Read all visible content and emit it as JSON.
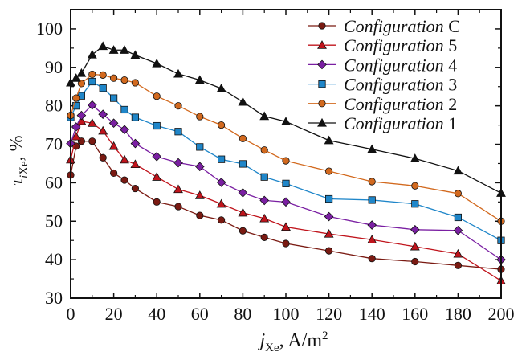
{
  "chart_data": {
    "type": "line",
    "xlabel": {
      "var": "j",
      "sub": "Xe",
      "unit": ", A/m",
      "sup": "2"
    },
    "ylabel": {
      "var": "τ",
      "sub_i": "i",
      "sub": "Xe",
      "unit": ", %"
    },
    "xlim": [
      0,
      200
    ],
    "ylim": [
      30,
      105
    ],
    "x_ticks": [
      0,
      20,
      40,
      60,
      80,
      100,
      120,
      140,
      160,
      180,
      200
    ],
    "y_ticks": [
      30,
      40,
      50,
      60,
      70,
      80,
      90,
      100
    ],
    "legend_position": "top-right",
    "series": [
      {
        "name_italic": "Configuration",
        "name_suffix": " C",
        "marker": "circle",
        "color": "#7a1a12",
        "x": [
          0,
          2.5,
          5,
          10,
          15,
          20,
          25,
          30,
          40,
          50,
          60,
          70,
          80,
          90,
          100,
          120,
          140,
          160,
          180,
          200
        ],
        "y": [
          62,
          69.5,
          70.8,
          70.8,
          66.5,
          62.5,
          60.7,
          58.5,
          55,
          53.8,
          51.5,
          50.3,
          47.5,
          45.8,
          44.2,
          42.3,
          40.3,
          39.5,
          38.5,
          37.5
        ]
      },
      {
        "name_italic": "Configuration",
        "name_suffix": " 5",
        "marker": "triangle",
        "color": "#c0141c",
        "x": [
          0,
          2.5,
          5,
          10,
          15,
          20,
          25,
          30,
          40,
          50,
          60,
          70,
          80,
          90,
          100,
          120,
          140,
          160,
          180,
          200
        ],
        "y": [
          66,
          72,
          76,
          75.5,
          73.5,
          69.5,
          66,
          64.8,
          61.5,
          58.3,
          56.7,
          54.5,
          52.2,
          50.7,
          48.5,
          46.7,
          45.2,
          43.4,
          41.5,
          34.5
        ]
      },
      {
        "name_italic": "Configuration",
        "name_suffix": " 4",
        "marker": "diamond",
        "color": "#7a1fa2",
        "x": [
          0,
          2.5,
          5,
          10,
          15,
          20,
          25,
          30,
          40,
          50,
          60,
          70,
          80,
          90,
          100,
          120,
          140,
          160,
          180,
          200
        ],
        "y": [
          70.2,
          74.5,
          77.5,
          80.2,
          77.8,
          75.5,
          73.8,
          70.2,
          66.8,
          65.2,
          64.2,
          60.1,
          57.4,
          55.4,
          55,
          51.2,
          49,
          47.8,
          47.6,
          40
        ]
      },
      {
        "name_italic": "Configuration",
        "name_suffix": " 3",
        "marker": "square",
        "color": "#1f86c9",
        "x": [
          0,
          2.5,
          5,
          10,
          15,
          20,
          25,
          30,
          40,
          50,
          60,
          70,
          80,
          90,
          100,
          120,
          140,
          160,
          180,
          200
        ],
        "y": [
          77,
          80,
          82.6,
          86.3,
          84.6,
          82,
          79,
          77,
          74.8,
          73.3,
          69.3,
          66.1,
          64.9,
          61.5,
          59.8,
          55.8,
          55.5,
          54.5,
          51,
          45
        ]
      },
      {
        "name_italic": "Configuration",
        "name_suffix": " 2",
        "marker": "circle",
        "color": "#d2691e",
        "x": [
          0,
          2.5,
          5,
          10,
          15,
          20,
          25,
          30,
          40,
          50,
          60,
          70,
          80,
          90,
          100,
          120,
          140,
          160,
          180,
          200
        ],
        "y": [
          77.5,
          82,
          85.8,
          88.2,
          88,
          87.2,
          86.7,
          86,
          82.5,
          80,
          77.2,
          75,
          71.5,
          68.5,
          65.7,
          63,
          60.3,
          59.2,
          57.2,
          50
        ]
      },
      {
        "name_italic": "Configuration",
        "name_suffix": " 1",
        "marker": "triangle",
        "color": "#111111",
        "x": [
          0,
          2.5,
          5,
          10,
          15,
          20,
          25,
          30,
          40,
          50,
          60,
          70,
          80,
          90,
          100,
          120,
          140,
          160,
          180,
          200
        ],
        "y": [
          86,
          87.2,
          88.5,
          93.3,
          95.5,
          94.5,
          94.5,
          93.2,
          91,
          88.3,
          86.7,
          84.5,
          81,
          77.3,
          75.9,
          71,
          68.7,
          66.3,
          63.1,
          57.3
        ]
      }
    ]
  }
}
